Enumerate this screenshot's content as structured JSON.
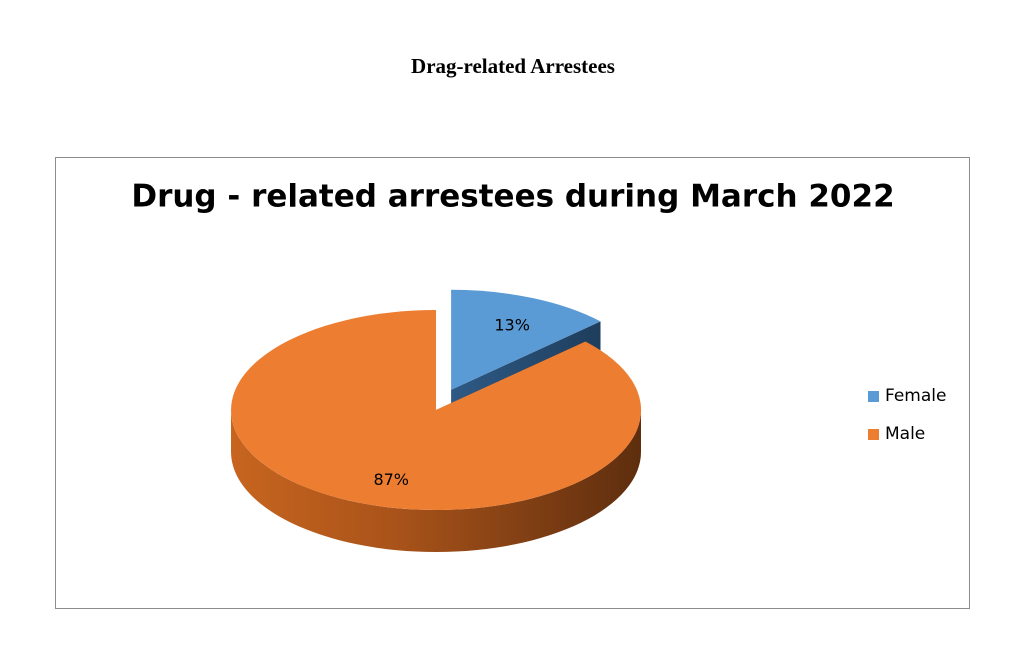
{
  "heading": "Drag-related Arrestees",
  "chart_data": {
    "type": "pie",
    "title": "Drug - related arrestees during March 2022",
    "categories": [
      "Female",
      "Male"
    ],
    "values": [
      13,
      87
    ],
    "value_labels": [
      "13%",
      "87%"
    ],
    "colors": [
      "#5b9bd5",
      "#ed7d31"
    ],
    "exploded": [
      true,
      false
    ],
    "legend": "right",
    "style": "3d"
  }
}
